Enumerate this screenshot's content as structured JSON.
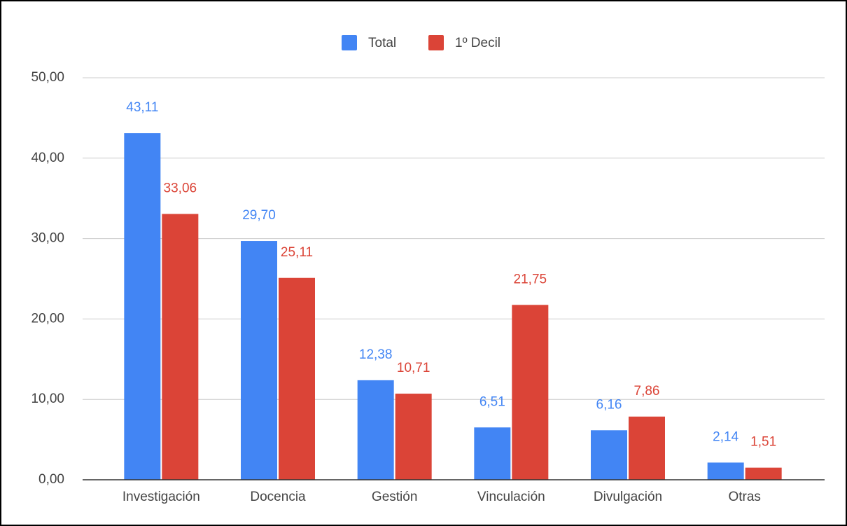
{
  "chart_data": {
    "type": "bar",
    "categories": [
      "Investigación",
      "Docencia",
      "Gestión",
      "Vinculación",
      "Divulgación",
      "Otras"
    ],
    "series": [
      {
        "name": "Total",
        "color": "#4285f4",
        "values": [
          43.11,
          29.7,
          12.38,
          6.51,
          6.16,
          2.14
        ],
        "value_labels": [
          "43,11",
          "29,70",
          "12,38",
          "6,51",
          "6,16",
          "2,14"
        ]
      },
      {
        "name": "1º Decil",
        "color": "#db4437",
        "values": [
          33.06,
          25.11,
          10.71,
          21.75,
          7.86,
          1.51
        ],
        "value_labels": [
          "33,06",
          "25,11",
          "10,71",
          "21,75",
          "7,86",
          "1,51"
        ]
      }
    ],
    "ylim": [
      0,
      50
    ],
    "yticks": [
      {
        "value": 0,
        "label": "0,00"
      },
      {
        "value": 10,
        "label": "10,00"
      },
      {
        "value": 20,
        "label": "20,00"
      },
      {
        "value": 30,
        "label": "30,00"
      },
      {
        "value": 40,
        "label": "40,00"
      },
      {
        "value": 50,
        "label": "50,00"
      }
    ],
    "grid": true,
    "legend": "top"
  }
}
